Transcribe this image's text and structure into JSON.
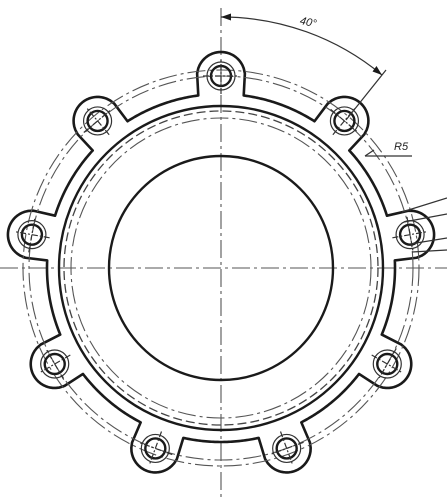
{
  "drawing": {
    "angle_label": "40°",
    "leader_label": "R5",
    "hole_count": 9,
    "hole_pitch_degrees": 40,
    "line_color": "#1a1a1a",
    "background": "#ffffff"
  }
}
